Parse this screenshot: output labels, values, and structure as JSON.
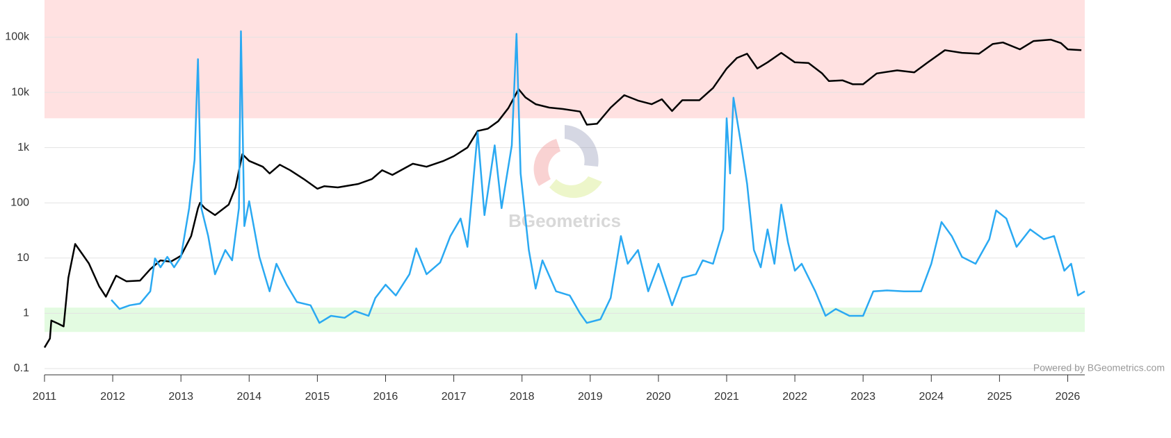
{
  "chart_data": {
    "type": "line",
    "log_scale": true,
    "grid": true,
    "xlim": [
      2011,
      2026.25
    ],
    "xticks": [
      2011,
      2012,
      2013,
      2014,
      2015,
      2016,
      2017,
      2018,
      2019,
      2020,
      2021,
      2022,
      2023,
      2024,
      2025,
      2026
    ],
    "ylim": [
      0.077,
      470000
    ],
    "yticks": [
      0.1,
      1,
      10,
      100,
      {
        "value": 1000,
        "label": "1k"
      },
      {
        "value": 10000,
        "label": "10k"
      },
      {
        "value": 100000,
        "label": "100k"
      }
    ],
    "bands": [
      {
        "from": 3400,
        "to": 470000,
        "color": "#ffe1e1"
      },
      {
        "from": 0.46,
        "to": 1.27,
        "color": "#e3fbe1"
      }
    ],
    "watermark": "BGeometrics",
    "credit": "Powered by BGeometrics.com",
    "series": [
      {
        "color": "#000000",
        "x": [
          2011.0,
          2011.08,
          2011.1,
          2011.2,
          2011.28,
          2011.35,
          2011.45,
          2011.55,
          2011.65,
          2011.8,
          2011.9,
          2012.05,
          2012.2,
          2012.4,
          2012.55,
          2012.7,
          2012.85,
          2013.0,
          2013.15,
          2013.25,
          2013.28,
          2013.35,
          2013.5,
          2013.7,
          2013.8,
          2013.9,
          2014.0,
          2014.2,
          2014.3,
          2014.45,
          2014.6,
          2014.8,
          2015.0,
          2015.1,
          2015.3,
          2015.6,
          2015.8,
          2015.95,
          2016.1,
          2016.4,
          2016.6,
          2016.85,
          2017.0,
          2017.2,
          2017.35,
          2017.5,
          2017.65,
          2017.8,
          2017.95,
          2018.05,
          2018.2,
          2018.4,
          2018.6,
          2018.85,
          2018.95,
          2019.1,
          2019.3,
          2019.5,
          2019.7,
          2019.9,
          2020.05,
          2020.2,
          2020.35,
          2020.6,
          2020.8,
          2021.0,
          2021.15,
          2021.3,
          2021.45,
          2021.6,
          2021.8,
          2022.0,
          2022.2,
          2022.4,
          2022.5,
          2022.7,
          2022.85,
          2023.0,
          2023.2,
          2023.5,
          2023.75,
          2023.95,
          2024.2,
          2024.45,
          2024.7,
          2024.9,
          2025.05,
          2025.3,
          2025.5,
          2025.75,
          2025.9,
          2026.0,
          2026.2
        ],
        "values": [
          0.24,
          0.35,
          0.74,
          0.65,
          0.58,
          4.4,
          18,
          12,
          8,
          3.1,
          2.0,
          4.8,
          3.8,
          3.9,
          6.3,
          9.1,
          8.6,
          11,
          25,
          80,
          100,
          80,
          60,
          93,
          190,
          760,
          575,
          450,
          340,
          490,
          390,
          270,
          180,
          200,
          190,
          220,
          270,
          390,
          320,
          510,
          450,
          575,
          700,
          1000,
          2000,
          2200,
          3000,
          5200,
          11400,
          8100,
          6100,
          5300,
          5000,
          4500,
          2600,
          2700,
          5300,
          8900,
          7100,
          6100,
          7500,
          4600,
          7200,
          7200,
          12000,
          27000,
          42000,
          50000,
          27000,
          35000,
          52000,
          35000,
          34000,
          22000,
          16000,
          16500,
          14000,
          14000,
          22000,
          25000,
          23000,
          35000,
          58000,
          52000,
          50000,
          75000,
          80000,
          60000,
          85000,
          90000,
          78000,
          60000,
          58000
        ]
      },
      {
        "color": "#2aa9f2",
        "x": [
          2011.98,
          2012.1,
          2012.25,
          2012.4,
          2012.55,
          2012.62,
          2012.7,
          2012.8,
          2012.9,
          2013.0,
          2013.12,
          2013.2,
          2013.25,
          2013.3,
          2013.4,
          2013.5,
          2013.65,
          2013.75,
          2013.85,
          2013.88,
          2013.93,
          2014.0,
          2014.15,
          2014.3,
          2014.4,
          2014.55,
          2014.7,
          2014.9,
          2015.03,
          2015.2,
          2015.4,
          2015.55,
          2015.75,
          2015.85,
          2016.0,
          2016.15,
          2016.35,
          2016.45,
          2016.6,
          2016.8,
          2016.95,
          2017.1,
          2017.2,
          2017.35,
          2017.45,
          2017.6,
          2017.7,
          2017.85,
          2017.92,
          2017.98,
          2018.1,
          2018.2,
          2018.3,
          2018.5,
          2018.7,
          2018.85,
          2018.95,
          2019.15,
          2019.3,
          2019.45,
          2019.55,
          2019.7,
          2019.85,
          2020.0,
          2020.2,
          2020.35,
          2020.55,
          2020.65,
          2020.8,
          2020.95,
          2021.0,
          2021.05,
          2021.1,
          2021.2,
          2021.3,
          2021.4,
          2021.5,
          2021.6,
          2021.7,
          2021.8,
          2021.9,
          2022.0,
          2022.1,
          2022.3,
          2022.45,
          2022.6,
          2022.8,
          2023.0,
          2023.15,
          2023.35,
          2023.6,
          2023.85,
          2024.0,
          2024.15,
          2024.3,
          2024.45,
          2024.65,
          2024.85,
          2024.95,
          2025.1,
          2025.25,
          2025.45,
          2025.65,
          2025.8,
          2025.95,
          2026.05,
          2026.15,
          2026.25
        ],
        "values": [
          1.75,
          1.2,
          1.4,
          1.5,
          2.5,
          9.9,
          6.8,
          10.5,
          6.8,
          10.5,
          80,
          600,
          40000,
          80,
          25,
          5.1,
          14,
          9.1,
          80,
          128000,
          38,
          107,
          10.5,
          2.5,
          7.9,
          3.3,
          1.6,
          1.4,
          0.67,
          0.9,
          0.83,
          1.1,
          0.9,
          1.9,
          3.3,
          2.1,
          5.1,
          15,
          5.1,
          8.3,
          25,
          52,
          16,
          1900,
          60,
          1100,
          80,
          1100,
          115000,
          340,
          14,
          2.8,
          9.1,
          2.5,
          2.1,
          1.0,
          0.67,
          0.78,
          1.9,
          25,
          7.9,
          14,
          2.5,
          7.9,
          1.4,
          4.4,
          5.1,
          9.1,
          7.9,
          33,
          3400,
          340,
          8000,
          1400,
          220,
          14,
          6.8,
          33,
          7.9,
          93,
          19,
          5.9,
          7.9,
          2.5,
          0.9,
          1.2,
          0.9,
          0.9,
          2.5,
          2.6,
          2.5,
          2.5,
          7.9,
          45,
          25,
          10.5,
          7.9,
          22,
          73,
          52,
          16,
          33,
          22,
          25,
          5.9,
          7.9,
          2.1,
          2.5
        ]
      }
    ]
  }
}
